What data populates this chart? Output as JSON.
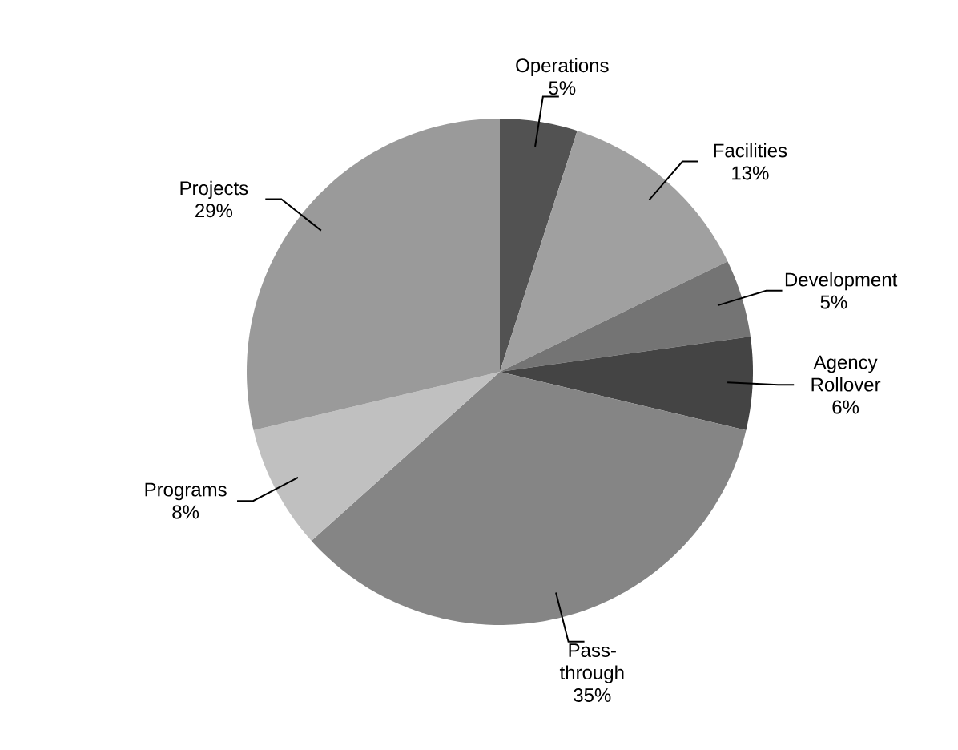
{
  "chart_data": {
    "type": "pie",
    "categories": [
      "Operations",
      "Facilities",
      "Development",
      "Agency Rollover",
      "Pass-through",
      "Programs",
      "Projects"
    ],
    "values": [
      5,
      13,
      5,
      6,
      35,
      8,
      29
    ],
    "colors": [
      "#525252",
      "#a0a0a0",
      "#747474",
      "#444444",
      "#858585",
      "#c0c0c0",
      "#9a9a9a"
    ],
    "value_labels": [
      "5%",
      "13%",
      "5%",
      "6%",
      "35%",
      "8%",
      "29%"
    ]
  }
}
